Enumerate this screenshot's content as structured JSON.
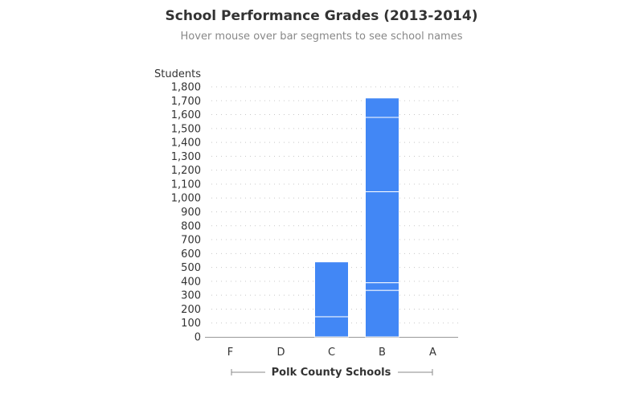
{
  "chart_data": {
    "type": "bar",
    "title": "School Performance Grades (2013-2014)",
    "subtitle": "Hover mouse over bar segments to see school names",
    "ylabel": "Students",
    "xlabel": "Polk County Schools",
    "categories": [
      "F",
      "D",
      "C",
      "B",
      "A"
    ],
    "ylim": [
      0,
      1800
    ],
    "yticks": [
      0,
      100,
      200,
      300,
      400,
      500,
      600,
      700,
      800,
      900,
      1000,
      1100,
      1200,
      1300,
      1400,
      1500,
      1600,
      1700,
      1800
    ],
    "grid": true,
    "stacked_segments": {
      "F": [],
      "D": [],
      "C": [
        145,
        395
      ],
      "B": [
        335,
        55,
        655,
        535,
        140
      ]
    },
    "totals": [
      0,
      0,
      540,
      1720,
      0
    ],
    "bar_color": "#4287f5",
    "separator_color": "#ffffff"
  }
}
